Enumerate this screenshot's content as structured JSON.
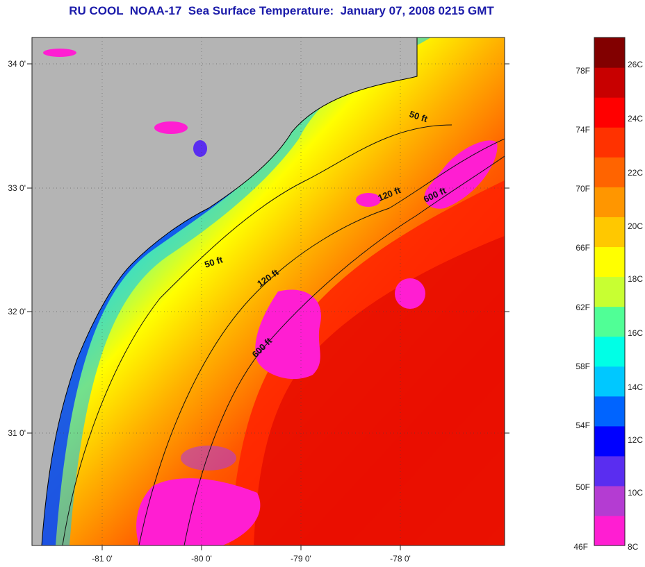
{
  "title": "RU COOL  NOAA-17  Sea Surface Temperature:  January 07, 2008 0215 GMT",
  "map": {
    "lon_ticks": [
      "-81 0'",
      "-80 0'",
      "-79 0'",
      "-78 0'"
    ],
    "lat_ticks": [
      "34 0'",
      "33 0'",
      "32 0'",
      "31 0'"
    ],
    "contour_labels": [
      "50 ft",
      "120 ft",
      "600 ft",
      "50 ft",
      "120 ft",
      "600 ft"
    ],
    "land_color": "#b4b4b4"
  },
  "colorbar": {
    "fahrenheit": [
      "78F",
      "74F",
      "70F",
      "66F",
      "62F",
      "58F",
      "54F",
      "50F",
      "46F"
    ],
    "celsius": [
      "26C",
      "24C",
      "22C",
      "20C",
      "18C",
      "16C",
      "14C",
      "12C",
      "10C",
      "8C"
    ],
    "colors": [
      "#ff1ed2",
      "#b43cd2",
      "#5a2df0",
      "#0000ff",
      "#0064ff",
      "#00c8ff",
      "#00ffe6",
      "#50ff96",
      "#c8ff32",
      "#ffff00",
      "#ffc800",
      "#ff9600",
      "#ff6400",
      "#ff3200",
      "#ff0000",
      "#c80000",
      "#820000"
    ]
  }
}
